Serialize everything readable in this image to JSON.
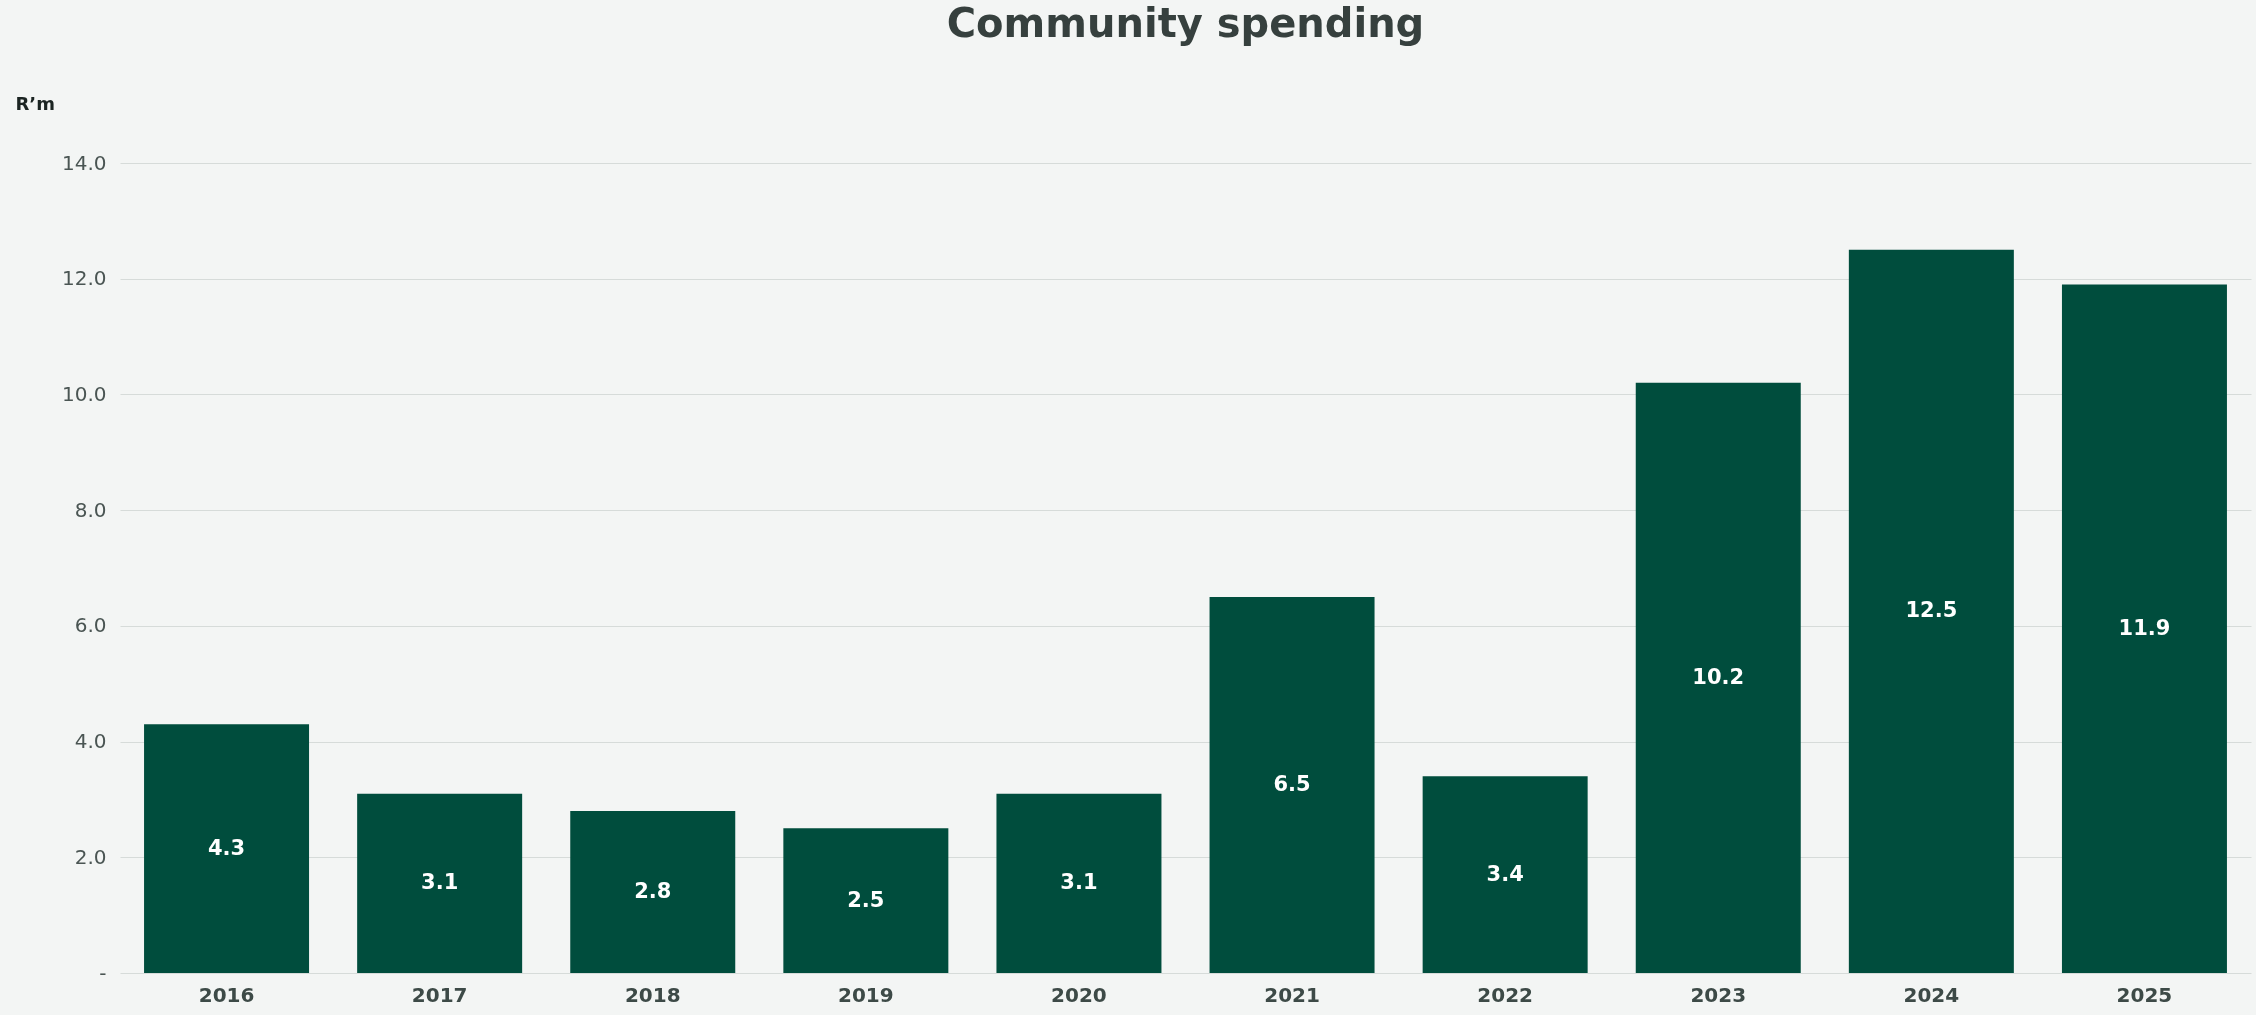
{
  "chart_data": {
    "type": "bar",
    "title": "Community spending",
    "ylabel": "R’m",
    "categories": [
      "2016",
      "2017",
      "2018",
      "2019",
      "2020",
      "2021",
      "2022",
      "2023",
      "2024",
      "2025"
    ],
    "values": [
      4.3,
      3.1,
      2.8,
      2.5,
      3.1,
      6.5,
      3.4,
      10.2,
      12.5,
      11.9
    ],
    "color": "#004d3d",
    "ylim": [
      0,
      14
    ],
    "yticks": [
      {
        "value": 0,
        "label": "-"
      },
      {
        "value": 2,
        "label": "2.0"
      },
      {
        "value": 4,
        "label": "4.0"
      },
      {
        "value": 6,
        "label": "6.0"
      },
      {
        "value": 8,
        "label": "8.0"
      },
      {
        "value": 10,
        "label": "10.0"
      },
      {
        "value": 12,
        "label": "12.0"
      },
      {
        "value": 14,
        "label": "14.0"
      }
    ],
    "grid": "y",
    "data_labels": true
  }
}
